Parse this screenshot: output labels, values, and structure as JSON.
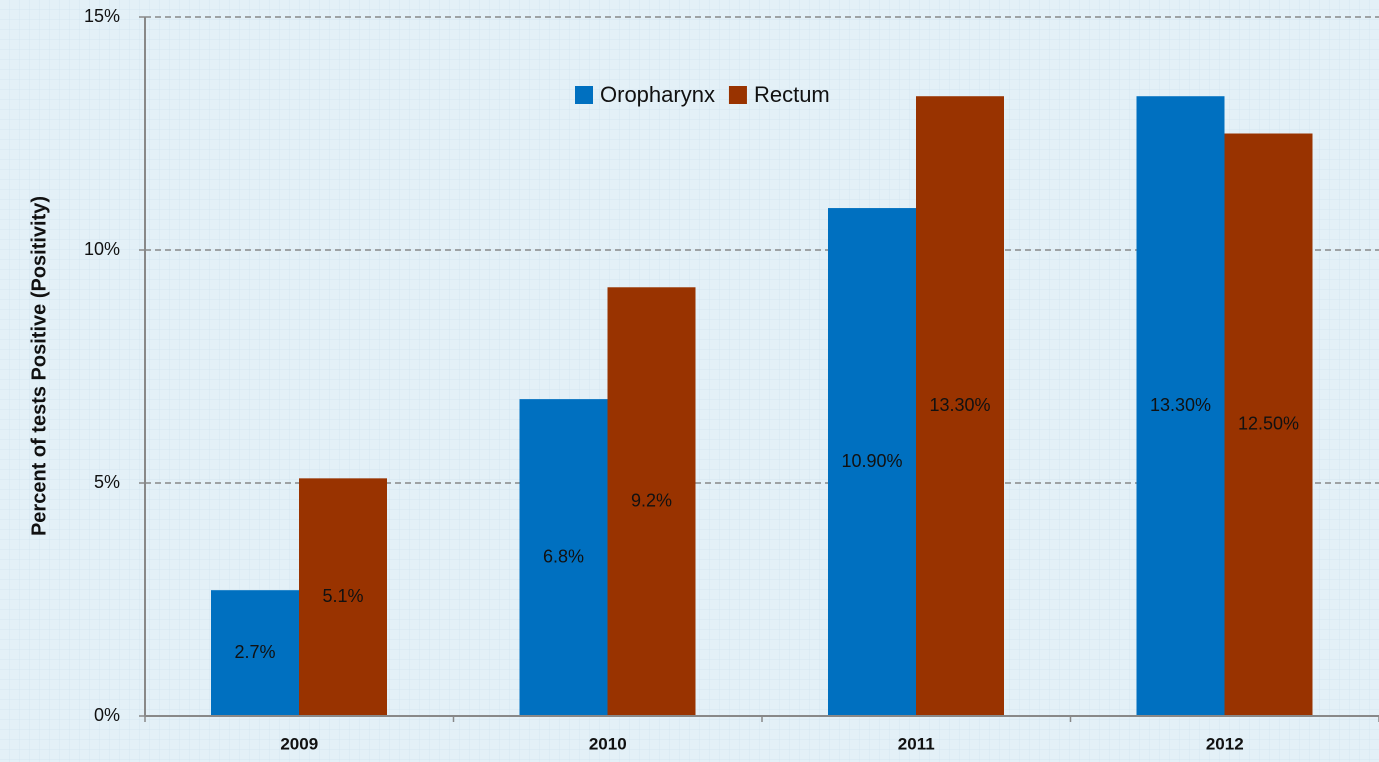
{
  "chart_data": {
    "type": "bar",
    "y_label": "Percent of tests Positive (Positivity)",
    "categories": [
      "2009",
      "2010",
      "2011",
      "2012"
    ],
    "series": [
      {
        "name": "Oropharynx",
        "color": "#0070c0",
        "values": [
          2.7,
          6.8,
          10.9,
          13.3
        ],
        "value_labels": [
          "2.7%",
          "6.8%",
          "10.90%",
          "13.30%"
        ]
      },
      {
        "name": "Rectum",
        "color": "#993300",
        "values": [
          5.1,
          9.2,
          13.3,
          12.5
        ],
        "value_labels": [
          "5.1%",
          "9.2%",
          "13.30%",
          "12.50%"
        ]
      }
    ],
    "ylim": [
      0,
      15
    ],
    "yticks": [
      {
        "value": 0,
        "label": "0%"
      },
      {
        "value": 5,
        "label": "5%"
      },
      {
        "value": 10,
        "label": "10%"
      },
      {
        "value": 15,
        "label": "15%"
      }
    ],
    "grid": true,
    "legend": "top"
  }
}
